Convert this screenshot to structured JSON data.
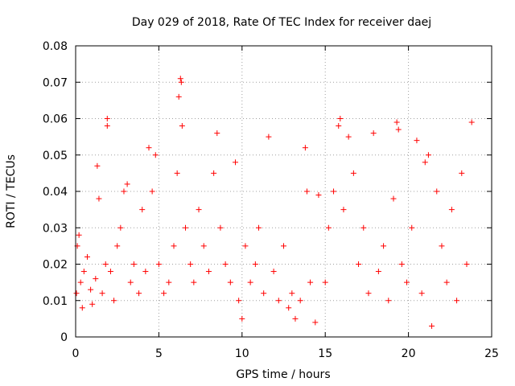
{
  "chart_data": {
    "type": "scatter",
    "title": "Day 029 of 2018, Rate Of TEC Index for receiver daej",
    "xlabel": "GPS time / hours",
    "ylabel": "ROTI / TECUs",
    "xlim": [
      0,
      25
    ],
    "ylim": [
      0,
      0.08
    ],
    "x_ticks": [
      "0",
      "5",
      "10",
      "15",
      "20",
      "25"
    ],
    "y_ticks": [
      "0",
      "0.01",
      "0.02",
      "0.03",
      "0.04",
      "0.05",
      "0.06",
      "0.07",
      "0.08"
    ],
    "grid": true,
    "marker": "+",
    "color": "#ff0000",
    "series": [
      {
        "name": "ROTI",
        "points": [
          [
            0.05,
            0.012
          ],
          [
            0.1,
            0.025
          ],
          [
            0.2,
            0.028
          ],
          [
            0.3,
            0.015
          ],
          [
            0.4,
            0.008
          ],
          [
            0.5,
            0.018
          ],
          [
            0.7,
            0.022
          ],
          [
            0.9,
            0.013
          ],
          [
            1.0,
            0.009
          ],
          [
            1.2,
            0.016
          ],
          [
            1.3,
            0.047
          ],
          [
            1.4,
            0.038
          ],
          [
            1.6,
            0.012
          ],
          [
            1.8,
            0.02
          ],
          [
            1.9,
            0.058
          ],
          [
            1.9,
            0.06
          ],
          [
            2.1,
            0.018
          ],
          [
            2.3,
            0.01
          ],
          [
            2.5,
            0.025
          ],
          [
            2.7,
            0.03
          ],
          [
            2.9,
            0.04
          ],
          [
            3.1,
            0.042
          ],
          [
            3.3,
            0.015
          ],
          [
            3.5,
            0.02
          ],
          [
            3.8,
            0.012
          ],
          [
            4.0,
            0.035
          ],
          [
            4.2,
            0.018
          ],
          [
            4.4,
            0.052
          ],
          [
            4.6,
            0.04
          ],
          [
            4.8,
            0.05
          ],
          [
            5.0,
            0.02
          ],
          [
            5.3,
            0.012
          ],
          [
            5.6,
            0.015
          ],
          [
            5.9,
            0.025
          ],
          [
            6.1,
            0.045
          ],
          [
            6.2,
            0.066
          ],
          [
            6.3,
            0.071
          ],
          [
            6.35,
            0.07
          ],
          [
            6.4,
            0.058
          ],
          [
            6.6,
            0.03
          ],
          [
            6.9,
            0.02
          ],
          [
            7.1,
            0.015
          ],
          [
            7.4,
            0.035
          ],
          [
            7.7,
            0.025
          ],
          [
            8.0,
            0.018
          ],
          [
            8.3,
            0.045
          ],
          [
            8.5,
            0.056
          ],
          [
            8.7,
            0.03
          ],
          [
            9.0,
            0.02
          ],
          [
            9.3,
            0.015
          ],
          [
            9.6,
            0.048
          ],
          [
            9.8,
            0.01
          ],
          [
            10.0,
            0.005
          ],
          [
            10.2,
            0.025
          ],
          [
            10.5,
            0.015
          ],
          [
            10.8,
            0.02
          ],
          [
            11.0,
            0.03
          ],
          [
            11.3,
            0.012
          ],
          [
            11.6,
            0.055
          ],
          [
            11.9,
            0.018
          ],
          [
            12.2,
            0.01
          ],
          [
            12.5,
            0.025
          ],
          [
            12.8,
            0.008
          ],
          [
            13.0,
            0.012
          ],
          [
            13.2,
            0.005
          ],
          [
            13.5,
            0.01
          ],
          [
            13.8,
            0.052
          ],
          [
            13.9,
            0.04
          ],
          [
            14.1,
            0.015
          ],
          [
            14.4,
            0.004
          ],
          [
            14.6,
            0.039
          ],
          [
            15.0,
            0.015
          ],
          [
            15.2,
            0.03
          ],
          [
            15.5,
            0.04
          ],
          [
            15.8,
            0.058
          ],
          [
            15.9,
            0.06
          ],
          [
            16.1,
            0.035
          ],
          [
            16.4,
            0.055
          ],
          [
            16.7,
            0.045
          ],
          [
            17.0,
            0.02
          ],
          [
            17.3,
            0.03
          ],
          [
            17.6,
            0.012
          ],
          [
            17.9,
            0.056
          ],
          [
            18.2,
            0.018
          ],
          [
            18.5,
            0.025
          ],
          [
            18.8,
            0.01
          ],
          [
            19.1,
            0.038
          ],
          [
            19.3,
            0.059
          ],
          [
            19.4,
            0.057
          ],
          [
            19.6,
            0.02
          ],
          [
            19.9,
            0.015
          ],
          [
            20.2,
            0.03
          ],
          [
            20.5,
            0.054
          ],
          [
            20.8,
            0.012
          ],
          [
            21.0,
            0.048
          ],
          [
            21.2,
            0.05
          ],
          [
            21.4,
            0.003
          ],
          [
            21.7,
            0.04
          ],
          [
            22.0,
            0.025
          ],
          [
            22.3,
            0.015
          ],
          [
            22.6,
            0.035
          ],
          [
            22.9,
            0.01
          ],
          [
            23.2,
            0.045
          ],
          [
            23.5,
            0.02
          ],
          [
            23.8,
            0.059
          ]
        ]
      }
    ]
  }
}
